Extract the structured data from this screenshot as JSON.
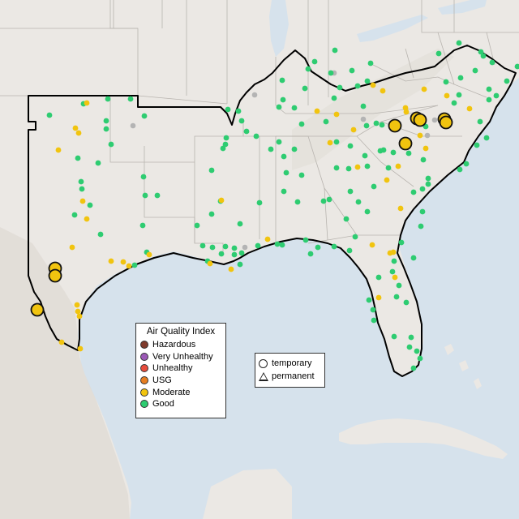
{
  "map": {
    "colors": {
      "water": "#d6e2ec",
      "land": "#ebe8e4",
      "land_terrain": "#e2ddd7",
      "state_lines": "#b9b5b0",
      "region_outline": "#000000",
      "good": "#2ecc71",
      "moderate": "#f1c40f",
      "usg": "#e67e22",
      "unhealthy": "#e74c3c",
      "very_unhealthy": "#9b59b6",
      "hazardous": "#7f3a2c",
      "no_data": "#b4b4b4"
    }
  },
  "legend_aqi": {
    "title": "Air Quality Index",
    "items": [
      {
        "label": "Hazardous",
        "color": "#7f3a2c"
      },
      {
        "label": "Very Unhealthy",
        "color": "#9b59b6"
      },
      {
        "label": "Unhealthy",
        "color": "#e74c3c"
      },
      {
        "label": "USG",
        "color": "#e67e22"
      },
      {
        "label": "Moderate",
        "color": "#f1c40f"
      },
      {
        "label": "Good",
        "color": "#2ecc71"
      }
    ]
  },
  "legend_type": {
    "items": [
      {
        "label": "temporary",
        "shape": "circle"
      },
      {
        "label": "permanent",
        "shape": "triangle"
      }
    ]
  }
}
